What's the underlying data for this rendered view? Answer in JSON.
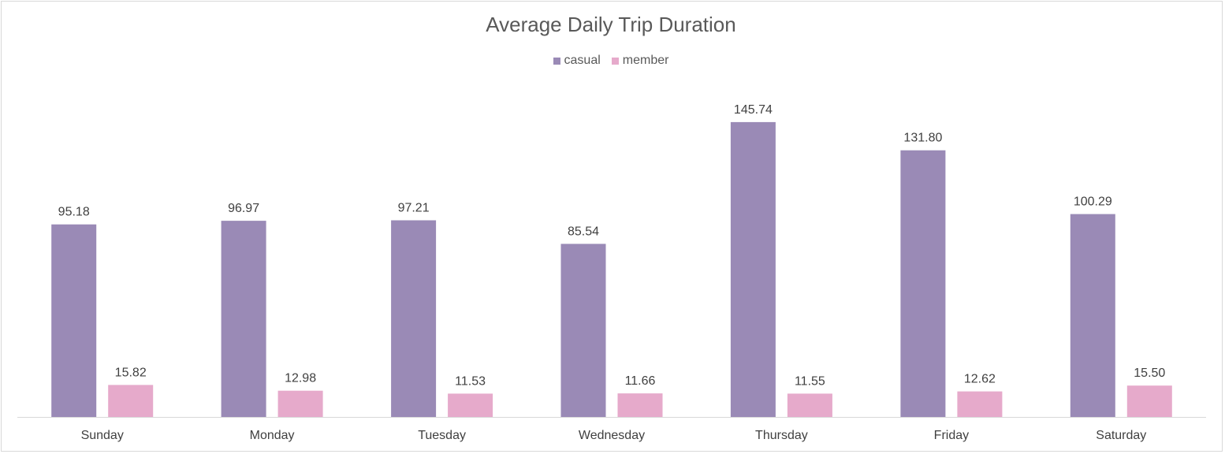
{
  "chart_data": {
    "type": "bar",
    "title": "Average Daily Trip Duration",
    "categories": [
      "Sunday",
      "Monday",
      "Tuesday",
      "Wednesday",
      "Thursday",
      "Friday",
      "Saturday"
    ],
    "series": [
      {
        "name": "casual",
        "color": "#9a8ab6",
        "values": [
          95.18,
          96.97,
          97.21,
          85.54,
          145.74,
          131.8,
          100.29
        ],
        "labels": [
          "95.18",
          "96.97",
          "97.21",
          "85.54",
          "145.74",
          "131.80",
          "100.29"
        ]
      },
      {
        "name": "member",
        "color": "#e6aacb",
        "values": [
          15.82,
          12.98,
          11.53,
          11.66,
          11.55,
          12.62,
          15.5
        ],
        "labels": [
          "15.82",
          "12.98",
          "11.53",
          "11.66",
          "11.55",
          "12.62",
          "15.50"
        ]
      }
    ],
    "xlabel": "",
    "ylabel": "",
    "ylim": [
      0,
      160
    ],
    "grid": false,
    "legend_position": "top-center"
  }
}
